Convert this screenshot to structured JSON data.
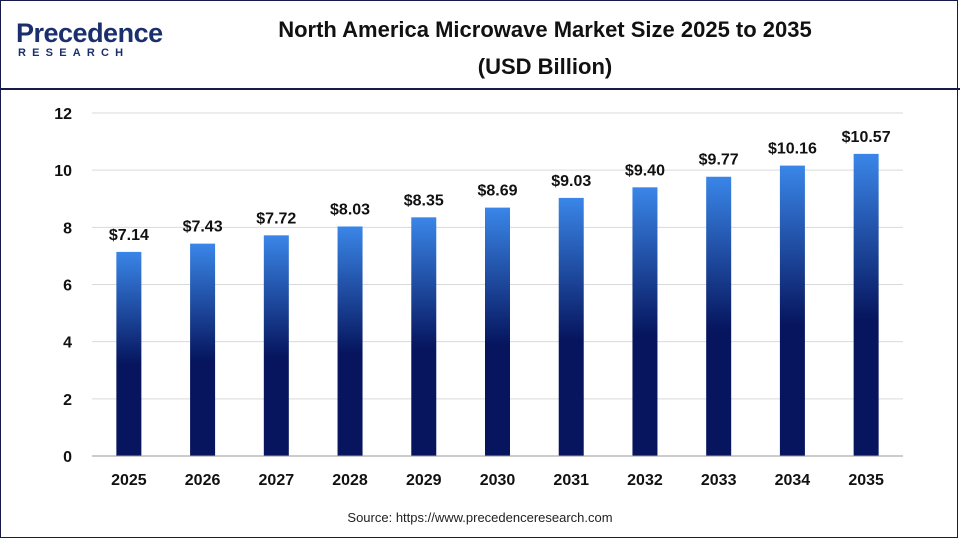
{
  "logo": {
    "main": "Precedence",
    "sub": "RESEARCH"
  },
  "title_line1": "North America Microwave Market Size 2025 to 2035",
  "title_line2": "(USD Billion)",
  "source": "Source: https://www.precedenceresearch.com",
  "colors": {
    "bar_top": "#3a86e8",
    "bar_bottom": "#06155e",
    "grid": "#d9d9d9",
    "border": "#1a1a4a"
  },
  "chart_data": {
    "type": "bar",
    "title": "North America Microwave Market Size 2025 to 2035",
    "subtitle": "(USD Billion)",
    "xlabel": "",
    "ylabel": "",
    "categories": [
      "2025",
      "2026",
      "2027",
      "2028",
      "2029",
      "2030",
      "2031",
      "2032",
      "2033",
      "2034",
      "2035"
    ],
    "values": [
      7.14,
      7.43,
      7.72,
      8.03,
      8.35,
      8.69,
      9.03,
      9.4,
      9.77,
      10.16,
      10.57
    ],
    "data_labels": [
      "$7.14",
      "$7.43",
      "$7.72",
      "$8.03",
      "$8.35",
      "$8.69",
      "$9.03",
      "$9.40",
      "$9.77",
      "$10.16",
      "$10.57"
    ],
    "ylim": [
      0,
      12
    ],
    "yticks": [
      0,
      2,
      4,
      6,
      8,
      10,
      12
    ],
    "grid": true,
    "legend": "none"
  }
}
